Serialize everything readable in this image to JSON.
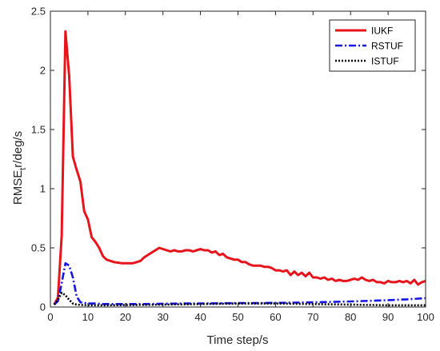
{
  "chart_data": {
    "type": "line",
    "title": "",
    "xlabel": "Time step/s",
    "ylabel_main": "RMSE",
    "ylabel_sub": "t",
    "ylabel_tail": "r/deg/s",
    "xlim": [
      0,
      100
    ],
    "ylim": [
      0,
      2.5
    ],
    "xticks": [
      "0",
      "10",
      "20",
      "30",
      "40",
      "50",
      "60",
      "70",
      "80",
      "90",
      "100"
    ],
    "yticks": [
      "0",
      "0.5",
      "1",
      "1.5",
      "2",
      "2.5"
    ],
    "grid": false,
    "legend_position": "top-right",
    "series": [
      {
        "name": "IUKF",
        "color": "#e8141c",
        "dash": "solid",
        "x": [
          1,
          2,
          3,
          4,
          5,
          6,
          7,
          8,
          9,
          10,
          11,
          12,
          13,
          14,
          15,
          16,
          17,
          18,
          19,
          20,
          21,
          22,
          23,
          24,
          25,
          26,
          27,
          28,
          29,
          30,
          31,
          32,
          33,
          34,
          35,
          36,
          37,
          38,
          39,
          40,
          41,
          42,
          43,
          44,
          45,
          46,
          47,
          48,
          49,
          50,
          51,
          52,
          53,
          54,
          55,
          56,
          57,
          58,
          59,
          60,
          61,
          62,
          63,
          64,
          65,
          66,
          67,
          68,
          69,
          70,
          71,
          72,
          73,
          74,
          75,
          76,
          77,
          78,
          79,
          80,
          81,
          82,
          83,
          84,
          85,
          86,
          87,
          88,
          89,
          90,
          91,
          92,
          93,
          94,
          95,
          96,
          97,
          98,
          99,
          100
        ],
        "y": [
          0.02,
          0.08,
          0.6,
          2.33,
          1.95,
          1.27,
          1.16,
          1.06,
          0.81,
          0.74,
          0.59,
          0.55,
          0.5,
          0.43,
          0.4,
          0.39,
          0.38,
          0.375,
          0.37,
          0.37,
          0.37,
          0.37,
          0.38,
          0.39,
          0.42,
          0.44,
          0.46,
          0.48,
          0.5,
          0.49,
          0.48,
          0.47,
          0.48,
          0.47,
          0.47,
          0.48,
          0.48,
          0.47,
          0.48,
          0.49,
          0.48,
          0.48,
          0.46,
          0.47,
          0.44,
          0.45,
          0.42,
          0.41,
          0.4,
          0.4,
          0.38,
          0.38,
          0.36,
          0.35,
          0.35,
          0.35,
          0.34,
          0.34,
          0.33,
          0.31,
          0.31,
          0.3,
          0.31,
          0.27,
          0.3,
          0.27,
          0.29,
          0.26,
          0.29,
          0.25,
          0.25,
          0.24,
          0.25,
          0.23,
          0.24,
          0.22,
          0.23,
          0.22,
          0.22,
          0.23,
          0.24,
          0.23,
          0.25,
          0.23,
          0.22,
          0.23,
          0.21,
          0.21,
          0.2,
          0.22,
          0.21,
          0.21,
          0.22,
          0.21,
          0.22,
          0.2,
          0.23,
          0.19,
          0.21,
          0.22
        ]
      },
      {
        "name": "RSTUF",
        "color": "#1515e6",
        "dash": "dashdot",
        "x": [
          1,
          2,
          3,
          4,
          5,
          6,
          7,
          8,
          9,
          10,
          12,
          14,
          16,
          18,
          20,
          25,
          30,
          35,
          40,
          45,
          50,
          55,
          60,
          65,
          70,
          75,
          80,
          85,
          90,
          95,
          100
        ],
        "y": [
          0.02,
          0.05,
          0.2,
          0.37,
          0.35,
          0.25,
          0.09,
          0.04,
          0.035,
          0.03,
          0.03,
          0.025,
          0.025,
          0.025,
          0.025,
          0.025,
          0.028,
          0.03,
          0.03,
          0.032,
          0.033,
          0.033,
          0.035,
          0.037,
          0.04,
          0.043,
          0.047,
          0.052,
          0.058,
          0.065,
          0.075
        ]
      },
      {
        "name": "ISTUF",
        "color": "#000000",
        "dash": "dotted",
        "x": [
          1,
          2,
          3,
          4,
          5,
          6,
          7,
          8,
          9,
          10,
          12,
          15,
          20,
          30,
          40,
          50,
          60,
          70,
          80,
          90,
          100
        ],
        "y": [
          0.02,
          0.06,
          0.12,
          0.1,
          0.06,
          0.03,
          0.02,
          0.018,
          0.016,
          0.015,
          0.015,
          0.015,
          0.016,
          0.02,
          0.025,
          0.03,
          0.03,
          0.025,
          0.02,
          0.015,
          0.015
        ]
      }
    ]
  }
}
